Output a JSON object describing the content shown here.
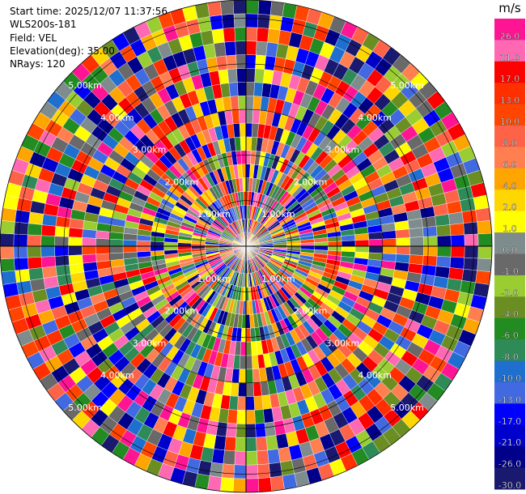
{
  "info": {
    "start_time": "Start time: 2025/12/07 11:37:56",
    "station": "WLS200s-181",
    "field": "Field: VEL",
    "elevation": "Elevation(deg): 35.00",
    "nrays": "NRays: 120"
  },
  "chart_data": {
    "type": "heatmap",
    "title": "",
    "field": "VEL",
    "elevation_deg": 35.0,
    "n_rays": 120,
    "max_range_km": 5.4,
    "range_rings_km": [
      1.0,
      2.0,
      3.0,
      4.0,
      5.0
    ],
    "range_ring_labels": [
      "1.00km",
      "2.00km",
      "3.00km",
      "4.00km",
      "5.00km"
    ],
    "colorbar": {
      "unit": "m/s",
      "ticks": [
        "26.0",
        "21.0",
        "17.0",
        "13.0",
        "10.0",
        "8.0",
        "6.0",
        "4.0",
        "2.0",
        "1.0",
        "0.0",
        "-1.0",
        "-2.0",
        "-4.0",
        "-6.0",
        "-8.0",
        "-10.0",
        "-13.0",
        "-17.0",
        "-21.0",
        "-26.0",
        "-30.0"
      ],
      "colors": [
        "#ff1493",
        "#ff69b4",
        "#ff0000",
        "#ff2f00",
        "#ff4500",
        "#ff6347",
        "#ff7f50",
        "#ffa500",
        "#ffd700",
        "#ffff00",
        "#7f8c8d",
        "#696969",
        "#9acd32",
        "#6b8e23",
        "#228b22",
        "#2e8b57",
        "#1e6fd0",
        "#4169e1",
        "#0000ff",
        "#0000cd",
        "#00008b",
        "#191970"
      ]
    }
  }
}
